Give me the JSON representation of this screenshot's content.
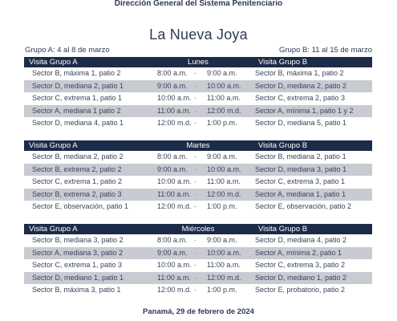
{
  "header": {
    "organization": "Dirección General del Sistema Penitenciario",
    "title": "La Nueva Joya",
    "group_a_dates": "Grupo A: 4 al 8 de marzo",
    "group_b_dates": "Grupo B: 11 al 15 de marzo"
  },
  "schedule": [
    {
      "col_a": "Visita Grupo A",
      "day": "Lunes",
      "col_b": "Visita Grupo B",
      "rows": [
        {
          "a": "Sector B, máxima 1, patio 2",
          "start": "8:00 a.m.",
          "sep": "-",
          "end": "9:00 a.m.",
          "b": "Sector B, máxima 1, patio 2"
        },
        {
          "a": "Sector D, mediana 2, patio 1",
          "start": "9:00 a.m.",
          "sep": "-",
          "end": "10:00 a.m.",
          "b": "Sector D, mediana 2, patio 2"
        },
        {
          "a": "Sector C, extrema 1, patio 1",
          "start": "10:00 a.m.",
          "sep": "-",
          "end": "11:00 a.m.",
          "b": "Sector C, extrema 2, patio 3"
        },
        {
          "a": "Sector A, mediana 1 patio 2",
          "start": "11:00 a.m.",
          "sep": "-",
          "end": "12:00 m.d.",
          "b": "Sector A, mínima  1, patio 1 y 2"
        },
        {
          "a": "Sector D, mediana 4, patio 1",
          "start": "12:00 m.d.",
          "sep": "-",
          "end": "1:00 p.m.",
          "b": "Sector D, mediana 5, patio 1"
        }
      ]
    },
    {
      "col_a": "Visita Grupo A",
      "day": "Martes",
      "col_b": "Visita Grupo B",
      "rows": [
        {
          "a": "Sector B, mediana 2, patio 2",
          "start": "8:00 a.m.",
          "sep": "-",
          "end": "9:00 a.m.",
          "b": "Sector B, mediana 2, patio 1"
        },
        {
          "a": "Sector B, extrema 2, patio 2",
          "start": "9:00 a.m.",
          "sep": "-",
          "end": "10:00 a.m.",
          "b": "Sector D, mediana 3, patio 1"
        },
        {
          "a": "Sector C, extrema 1, patio 2",
          "start": "10:00 a.m.",
          "sep": "-",
          "end": "11:00 a.m.",
          "b": "Sector C, extrema 3, patio 1"
        },
        {
          "a": "Sector B, extrema 2, patio 3",
          "start": "11:00 a.m.",
          "sep": "-",
          "end": "12:00 m.d.",
          "b": "Sector A, mediana 1, patio 1"
        },
        {
          "a": "Sector E, observación, patio 1",
          "start": "12:00 m.d.",
          "sep": "-",
          "end": "1:00 p.m.",
          "b": "Sector E, observación, patio 2"
        }
      ]
    },
    {
      "col_a": "Visita Grupo A",
      "day": "Miércoles",
      "col_b": "Visita Grupo B",
      "rows": [
        {
          "a": "Sector B, mediana 3, patio 2",
          "start": "8:00 a.m.",
          "sep": "-",
          "end": "9:00 a.m.",
          "b": "Sector D, mediana 4, patio 2"
        },
        {
          "a": "Sector A, mediana 3, patio 2",
          "start": "9:00 a.m.",
          "sep": "-",
          "end": "10:00 a.m.",
          "b": "Sector A, mínima 2, patio 1"
        },
        {
          "a": "Sector C, extrema 1, patio 3",
          "start": "10:00 a.m.",
          "sep": "-",
          "end": "11:00 a.m.",
          "b": "Sector C, extrema 3, patio 2"
        },
        {
          "a": "Sector D, mediano 1, patio 1",
          "start": "11:00 a.m.",
          "sep": "-",
          "end": "12:00 m.d.",
          "b": "Sector D, mediano 1, patio 2"
        },
        {
          "a": "Sector B, máxima 3, patio 1",
          "start": "12:00 m.d.",
          "sep": "-",
          "end": "1:00 p.m.",
          "b": "Sector E, probatorio, patio 2"
        }
      ]
    }
  ],
  "footer": {
    "place_date": "Panamá, 29 de febrero de 2024"
  }
}
